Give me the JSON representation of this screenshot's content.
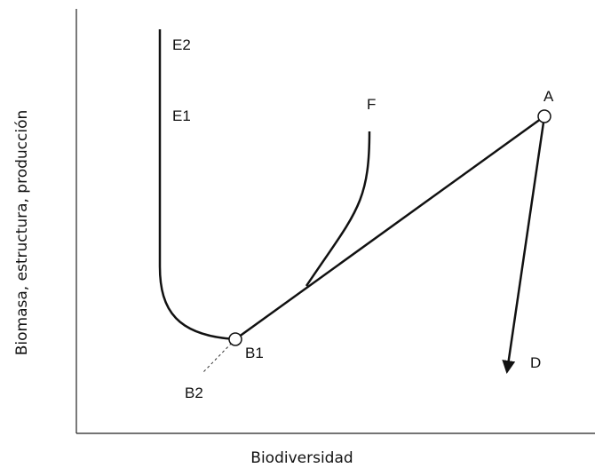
{
  "axes": {
    "x_label": "Biodiversidad",
    "y_label": "Biomasa, estructura, producción"
  },
  "nodes": [
    {
      "label": "E2"
    },
    {
      "label": "E1"
    },
    {
      "label": "F"
    },
    {
      "label": "A"
    },
    {
      "label": "B1"
    },
    {
      "label": "B2"
    },
    {
      "label": "D"
    }
  ]
}
